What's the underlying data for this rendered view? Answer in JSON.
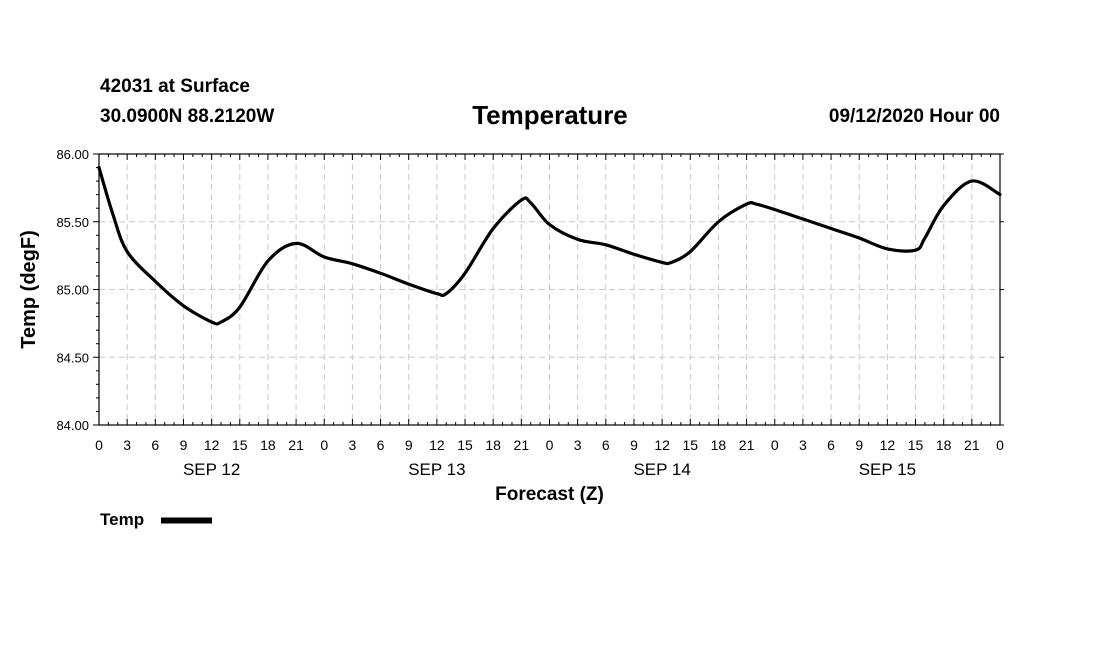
{
  "header": {
    "station": "42031 at Surface",
    "coords": "30.0900N 88.2120W",
    "title": "Temperature",
    "date": "09/12/2020 Hour 00"
  },
  "legend": {
    "label": "Temp",
    "color": "#000000"
  },
  "chart_data": {
    "type": "line",
    "title": "Temperature",
    "xlabel": "Forecast (Z)",
    "ylabel": "Temp (degF)",
    "ylim": [
      84.0,
      86.0
    ],
    "yticks": [
      "84.00",
      "84.50",
      "85.00",
      "85.50",
      "86.00"
    ],
    "xlim": [
      0,
      96
    ],
    "xtick_labels": [
      "0",
      "3",
      "6",
      "9",
      "12",
      "15",
      "18",
      "21",
      "0",
      "3",
      "6",
      "9",
      "12",
      "15",
      "18",
      "21",
      "0",
      "3",
      "6",
      "9",
      "12",
      "15",
      "18",
      "21",
      "0",
      "3",
      "6",
      "9",
      "12",
      "15",
      "18",
      "21",
      "0"
    ],
    "day_labels": [
      {
        "hour": 12,
        "label": "SEP 12"
      },
      {
        "hour": 36,
        "label": "SEP 13"
      },
      {
        "hour": 60,
        "label": "SEP 14"
      },
      {
        "hour": 84,
        "label": "SEP 15"
      }
    ],
    "grid": true,
    "series": [
      {
        "name": "Temp",
        "color": "#000000",
        "x": [
          0,
          1.5,
          3,
          6,
          9,
          12,
          13,
          15,
          18,
          21,
          24,
          27,
          30,
          33,
          36,
          37,
          39,
          42,
          45,
          46,
          48,
          51,
          54,
          57,
          60,
          61,
          63,
          66,
          69,
          70,
          72,
          75,
          78,
          81,
          84,
          87,
          88,
          90,
          93,
          96
        ],
        "y": [
          85.9,
          85.55,
          85.28,
          85.06,
          84.88,
          84.76,
          84.76,
          84.87,
          85.21,
          85.34,
          85.24,
          85.19,
          85.12,
          85.04,
          84.97,
          84.97,
          85.12,
          85.45,
          85.66,
          85.64,
          85.48,
          85.37,
          85.33,
          85.26,
          85.2,
          85.2,
          85.28,
          85.5,
          85.63,
          85.63,
          85.59,
          85.52,
          85.45,
          85.38,
          85.3,
          85.29,
          85.38,
          85.62,
          85.8,
          85.7
        ]
      }
    ]
  }
}
